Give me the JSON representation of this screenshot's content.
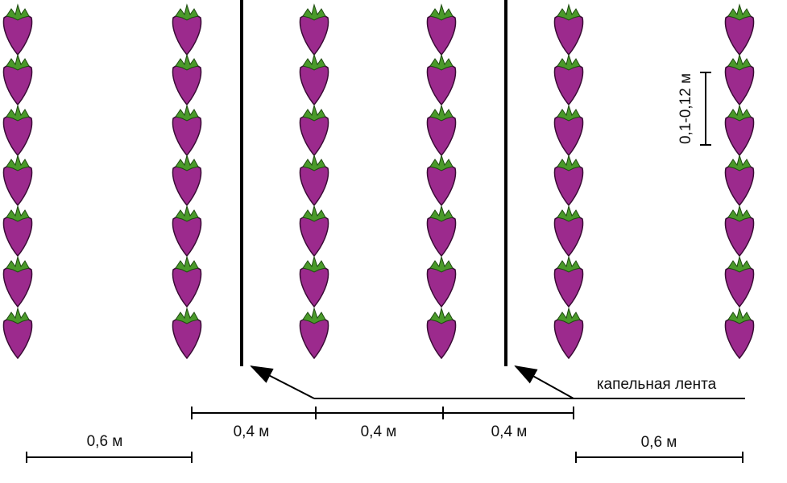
{
  "labels": {
    "plant_spacing": "0,1-0,12 м",
    "drip_tape": "капельная лента",
    "row_gaps": [
      "0,4 м",
      "0,4 м",
      "0,4 м"
    ],
    "side_gaps": [
      "0,6 м",
      "0,6 м"
    ]
  }
}
